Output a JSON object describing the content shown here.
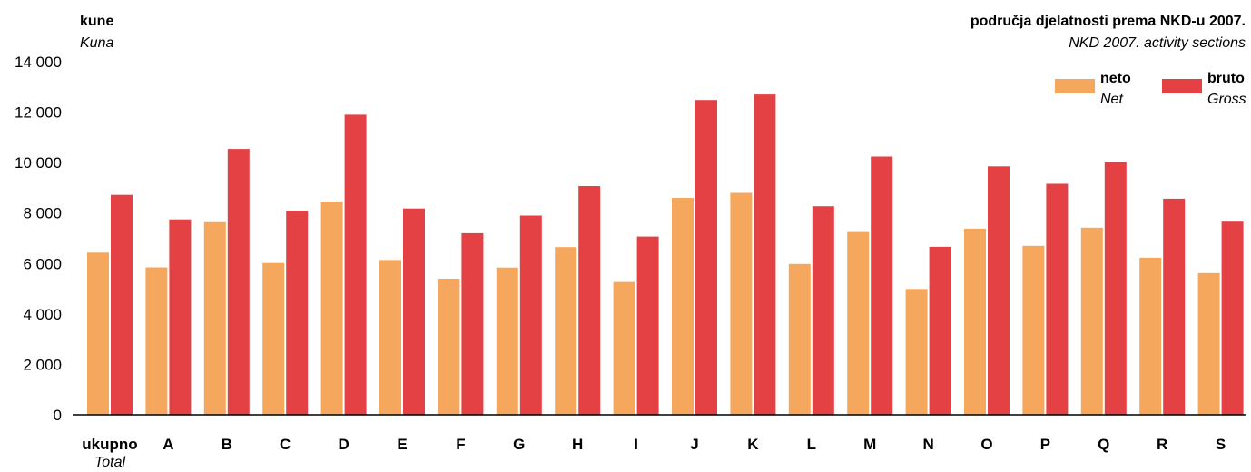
{
  "chart_data": {
    "type": "bar",
    "ylabel": "kune",
    "ylabel_en": "Kuna",
    "xtitle": "područja djelatnosti prema NKD-u 2007.",
    "xtitle_en": "NKD 2007. activity sections",
    "ylim": [
      0,
      14000
    ],
    "yticks": [
      0,
      2000,
      4000,
      6000,
      8000,
      10000,
      12000,
      14000
    ],
    "ytick_labels": [
      "0",
      "2 000",
      "4 000",
      "6 000",
      "8 000",
      "10 000",
      "12 000",
      "14 000"
    ],
    "grid": false,
    "legend_position": "top-right",
    "categories": [
      "ukupno",
      "A",
      "B",
      "C",
      "D",
      "E",
      "F",
      "G",
      "H",
      "I",
      "J",
      "K",
      "L",
      "M",
      "N",
      "O",
      "P",
      "Q",
      "R",
      "S"
    ],
    "first_category_en": "Total",
    "series": [
      {
        "name": "neto",
        "name_en": "Net",
        "color": "#f6a75e",
        "values": [
          6430,
          5850,
          7640,
          6020,
          8450,
          6140,
          5400,
          5840,
          6650,
          5270,
          8600,
          8800,
          5980,
          7250,
          4990,
          7380,
          6700,
          7420,
          6230,
          5620
        ]
      },
      {
        "name": "bruto",
        "name_en": "Gross",
        "color": "#e44144",
        "values": [
          8720,
          7750,
          10540,
          8090,
          11900,
          8180,
          7200,
          7900,
          9070,
          7070,
          12480,
          12700,
          8270,
          10240,
          6660,
          9850,
          9160,
          10020,
          8570,
          7660
        ]
      }
    ]
  }
}
